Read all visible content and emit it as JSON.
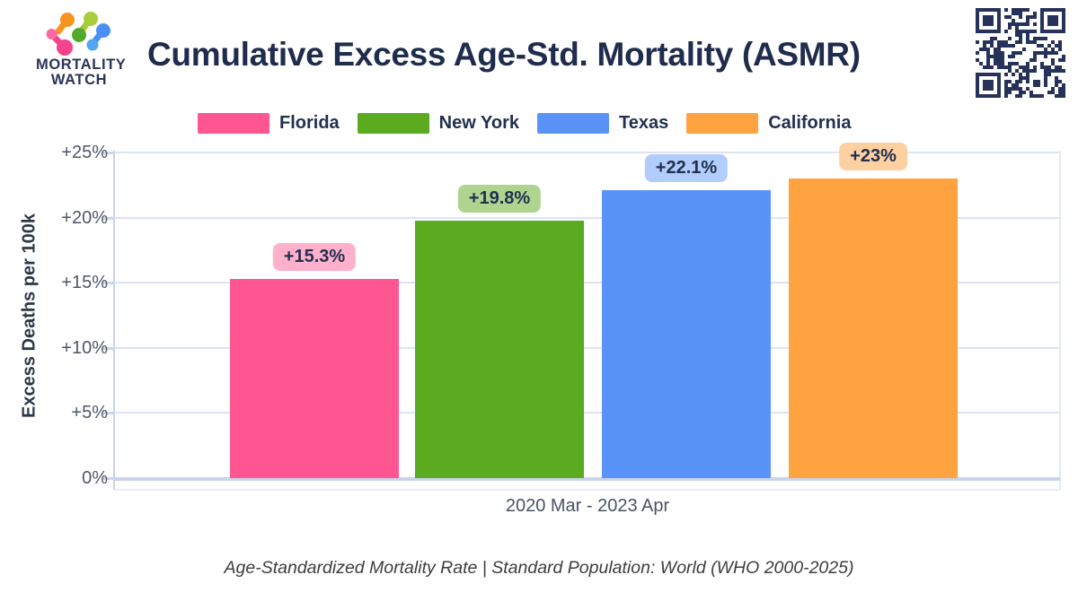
{
  "brand": {
    "name_line1": "MORTALITY",
    "name_line2": "WATCH"
  },
  "header": {
    "title": "Cumulative Excess Age-Std. Mortality (ASMR)"
  },
  "legend": [
    {
      "label": "Florida",
      "color": "#ff5591"
    },
    {
      "label": "New York",
      "color": "#5aab20"
    },
    {
      "label": "Texas",
      "color": "#5a93f8"
    },
    {
      "label": "California",
      "color": "#ffa341"
    }
  ],
  "chart_data": {
    "type": "bar",
    "title": "Cumulative Excess Age-Std. Mortality (ASMR)",
    "categories": [
      "Florida",
      "New York",
      "Texas",
      "California"
    ],
    "values": [
      15.3,
      19.8,
      22.1,
      23
    ],
    "value_labels": [
      "+15.3%",
      "+19.8%",
      "+22.1%",
      "+23%"
    ],
    "bar_colors": [
      "#ff5591",
      "#5aab20",
      "#5a93f8",
      "#ffa341"
    ],
    "label_bg_colors": [
      "#ffb1cb",
      "#aed490",
      "#b1cdfb",
      "#fdd0a2"
    ],
    "xlabel": "2020 Mar - 2023 Apr",
    "ylabel": "Excess Deaths per 100k",
    "ylim": [
      0,
      25
    ],
    "yticks": [
      "0%",
      "+5%",
      "+10%",
      "+15%",
      "+20%",
      "+25%"
    ],
    "grid": true,
    "legend_position": "top"
  },
  "footer": {
    "note": "Age-Standardized Mortality Rate | Standard Population: World (WHO 2000-2025)"
  },
  "colors": {
    "title_text": "#1f2c4d",
    "tick_text": "#4e5768",
    "gridline": "#dde3f7",
    "qr_dark": "#27325a",
    "pill_text": "#223050"
  }
}
